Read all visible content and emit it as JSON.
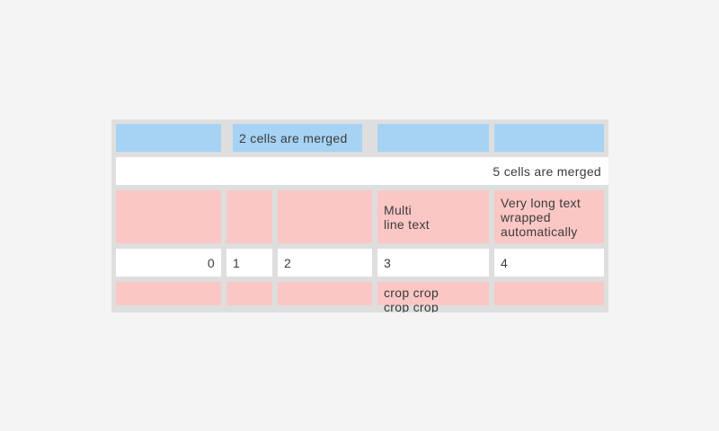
{
  "colors": {
    "page_bg": "#f4f4f5",
    "table_bg": "#dedede",
    "cell_blue": "#a6d3f3",
    "cell_pink": "#fbc7c5",
    "cell_white": "#ffffff",
    "text": "#3b3b3b"
  },
  "table": {
    "row_count": 5,
    "column_count": 5,
    "cells": {
      "r0c1_merged": "2 cells are merged",
      "r1_merged": "5 cells are merged",
      "r2c3": "Multi\nline text",
      "r2c4": "Very long text wrapped automatically",
      "r3c0": "0",
      "r3c1": "1",
      "r3c2": "2",
      "r3c3": "3",
      "r3c4": "4",
      "r4c3": "crop crop\ncrop crop"
    }
  }
}
